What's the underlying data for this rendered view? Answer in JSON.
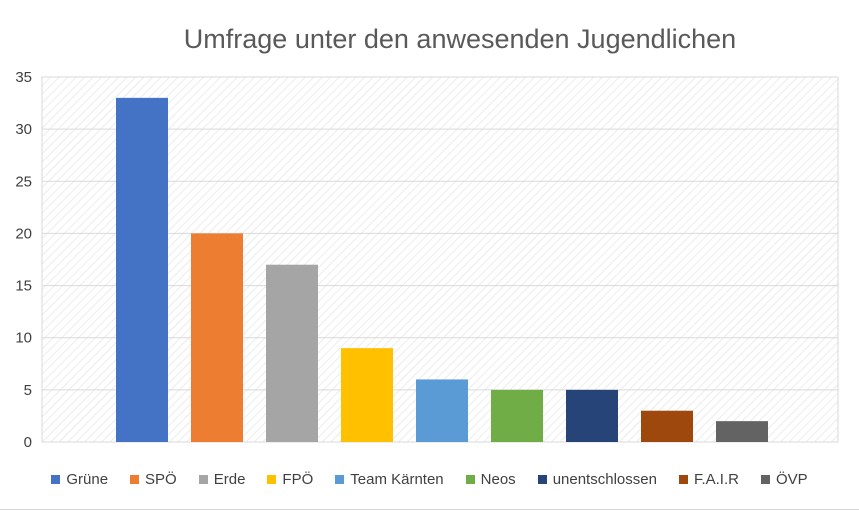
{
  "chart_data": {
    "type": "bar",
    "title": "Umfrage unter den anwesenden Jugendlichen",
    "xlabel": "",
    "ylabel": "",
    "ylim": [
      0,
      35
    ],
    "yticks": [
      0,
      5,
      10,
      15,
      20,
      25,
      30,
      35
    ],
    "grid": true,
    "legend_position": "bottom",
    "categories": [
      "Grüne",
      "SPÖ",
      "Erde",
      "FPÖ",
      "Team Kärnten",
      "Neos",
      "unentschlossen",
      "F.A.I.R",
      "ÖVP"
    ],
    "values": [
      33,
      20,
      17,
      9,
      6,
      5,
      5,
      3,
      2
    ],
    "colors": [
      "#4472c4",
      "#ed7d31",
      "#a5a5a5",
      "#ffc000",
      "#5b9bd5",
      "#70ad47",
      "#264478",
      "#9e480e",
      "#636363"
    ]
  }
}
